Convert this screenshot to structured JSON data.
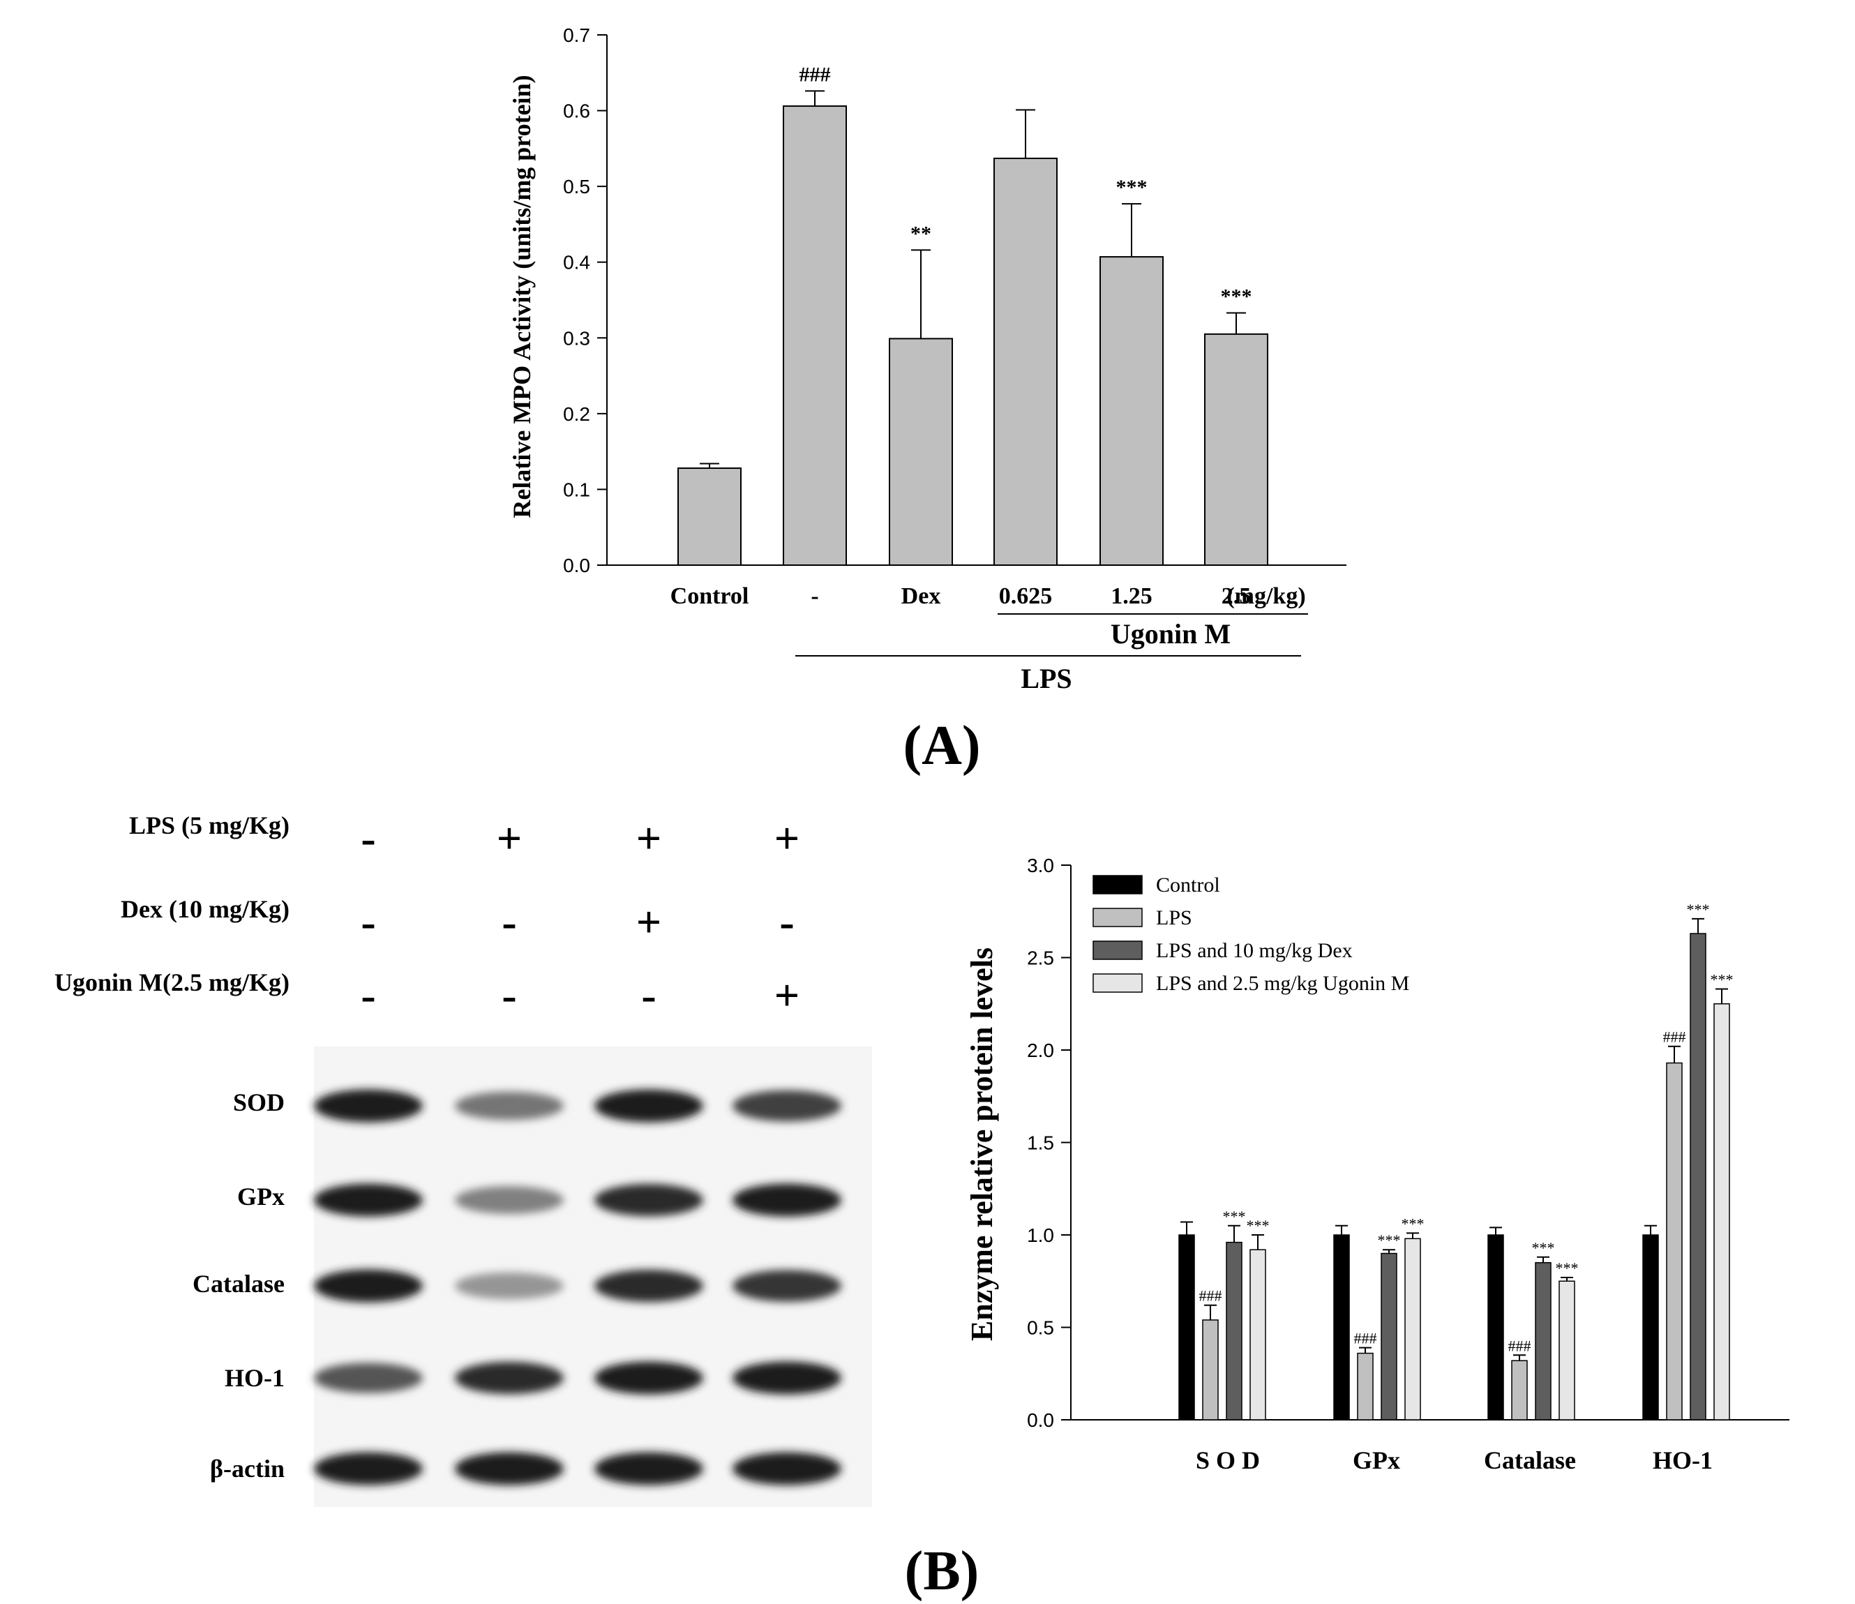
{
  "chart_data": [
    {
      "type": "bar",
      "panel": "(A)",
      "ylabel": "Relative MPO Activity (units/mg protein)",
      "ylim": [
        0,
        0.7
      ],
      "yticks": [
        "0.0",
        "0.1",
        "0.2",
        "0.3",
        "0.4",
        "0.5",
        "0.6",
        "0.7"
      ],
      "categories": [
        "Control",
        "-",
        "Dex",
        "0.625",
        "1.25",
        "2.5"
      ],
      "unit_label": "(mg/kg)",
      "values": [
        0.128,
        0.606,
        0.299,
        0.537,
        0.407,
        0.305
      ],
      "errors": [
        0.006,
        0.02,
        0.117,
        0.064,
        0.07,
        0.028
      ],
      "annotations": [
        "",
        "###",
        "**",
        "",
        "***",
        "***"
      ],
      "group_labels": {
        "ugonin": "Ugonin M",
        "lps": "LPS"
      },
      "bar_color": "#bfbfbf"
    },
    {
      "type": "bar",
      "panel": "(B)",
      "ylabel": "Enzyme relative protein levels",
      "ylim": [
        0,
        3.0
      ],
      "yticks": [
        "0.0",
        "0.5",
        "1.0",
        "1.5",
        "2.0",
        "2.5",
        "3.0"
      ],
      "categories": [
        "S O D",
        "GPx",
        "Catalase",
        "HO-1"
      ],
      "series": [
        {
          "name": "Control",
          "color": "#000000",
          "values": [
            1.0,
            1.0,
            1.0,
            1.0
          ],
          "errors": [
            0.07,
            0.05,
            0.04,
            0.05
          ],
          "annotations": [
            "",
            "",
            "",
            ""
          ]
        },
        {
          "name": "LPS",
          "color": "#c0c0c0",
          "values": [
            0.54,
            0.36,
            0.32,
            1.93
          ],
          "errors": [
            0.08,
            0.03,
            0.03,
            0.09
          ],
          "annotations": [
            "###",
            "###",
            "###",
            "###"
          ]
        },
        {
          "name": "LPS and 10 mg/kg Dex",
          "color": "#5e5e5e",
          "values": [
            0.96,
            0.9,
            0.85,
            2.63
          ],
          "errors": [
            0.09,
            0.02,
            0.03,
            0.08
          ],
          "annotations": [
            "***",
            "***",
            "***",
            "***"
          ]
        },
        {
          "name": "LPS and 2.5 mg/kg Ugonin M",
          "color": "#e6e6e6",
          "values": [
            0.92,
            0.98,
            0.75,
            2.25
          ],
          "errors": [
            0.08,
            0.03,
            0.02,
            0.08
          ],
          "annotations": [
            "***",
            "***",
            "***",
            "***"
          ]
        }
      ]
    }
  ],
  "panel_labels": {
    "a": "(A)",
    "b": "(B)"
  },
  "western_blot": {
    "treatments": [
      {
        "label": "LPS (5 mg/Kg)",
        "signs": [
          "-",
          "+",
          "+",
          "+"
        ]
      },
      {
        "label": "Dex (10 mg/Kg)",
        "signs": [
          "-",
          "-",
          "+",
          "-"
        ]
      },
      {
        "label": "Ugonin M(2.5 mg/Kg)",
        "signs": [
          "-",
          "-",
          "-",
          "+"
        ]
      }
    ],
    "proteins": [
      "SOD",
      "GPx",
      "Catalase",
      "HO-1",
      "β-actin"
    ],
    "intensities": [
      [
        0.95,
        0.55,
        0.95,
        0.8
      ],
      [
        0.95,
        0.5,
        0.9,
        0.95
      ],
      [
        0.95,
        0.4,
        0.9,
        0.85
      ],
      [
        0.7,
        0.9,
        0.95,
        0.95
      ],
      [
        0.95,
        0.95,
        0.95,
        0.95
      ]
    ]
  }
}
